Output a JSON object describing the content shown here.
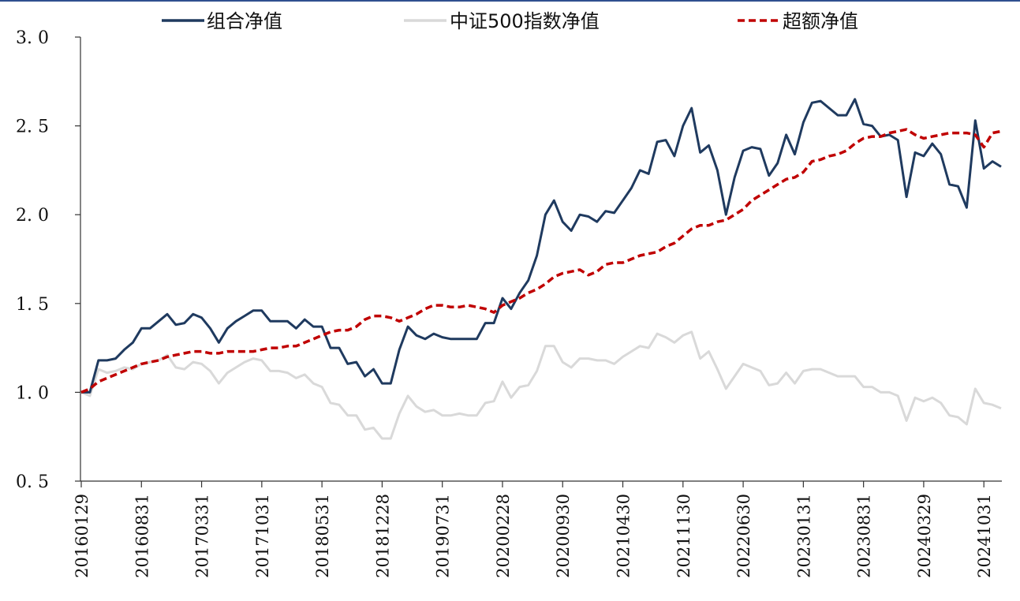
{
  "chart_data": {
    "type": "line",
    "title": "",
    "xlabel": "",
    "ylabel": "",
    "ylim": [
      0.5,
      3.0
    ],
    "yticks": [
      "3. 0",
      "2. 5",
      "2. 0",
      "1. 5",
      "1. 0",
      "0. 5"
    ],
    "ytick_values": [
      3.0,
      2.5,
      2.0,
      1.5,
      1.0,
      0.5
    ],
    "xtick_labels": [
      "20160129",
      "20160831",
      "20170331",
      "20171031",
      "20180531",
      "20181228",
      "20190731",
      "20200228",
      "20200930",
      "20210430",
      "20211130",
      "20220630",
      "20230131",
      "20230831",
      "20240329",
      "20241031"
    ],
    "grid": false,
    "legend_position": "top",
    "series": [
      {
        "name": "组合净值",
        "color": "#1f3a5f",
        "style": "solid",
        "values": [
          1.0,
          1.0,
          1.18,
          1.18,
          1.19,
          1.24,
          1.28,
          1.36,
          1.36,
          1.4,
          1.44,
          1.38,
          1.39,
          1.44,
          1.42,
          1.36,
          1.28,
          1.36,
          1.4,
          1.43,
          1.46,
          1.46,
          1.4,
          1.4,
          1.4,
          1.36,
          1.41,
          1.37,
          1.37,
          1.25,
          1.25,
          1.16,
          1.17,
          1.09,
          1.13,
          1.05,
          1.05,
          1.24,
          1.37,
          1.32,
          1.3,
          1.33,
          1.31,
          1.3,
          1.3,
          1.3,
          1.3,
          1.39,
          1.39,
          1.53,
          1.47,
          1.56,
          1.63,
          1.77,
          2.0,
          2.08,
          1.96,
          1.91,
          2.0,
          1.99,
          1.96,
          2.02,
          2.01,
          2.08,
          2.15,
          2.25,
          2.23,
          2.41,
          2.42,
          2.33,
          2.5,
          2.6,
          2.35,
          2.39,
          2.25,
          2.0,
          2.21,
          2.36,
          2.38,
          2.37,
          2.22,
          2.29,
          2.45,
          2.34,
          2.52,
          2.63,
          2.64,
          2.6,
          2.56,
          2.56,
          2.65,
          2.51,
          2.5,
          2.44,
          2.45,
          2.42,
          2.1,
          2.35,
          2.33,
          2.4,
          2.34,
          2.17,
          2.16,
          2.04,
          2.53,
          2.26,
          2.3,
          2.27
        ]
      },
      {
        "name": "中证500指数净值",
        "color": "#d9d9d9",
        "style": "solid",
        "values": [
          1.0,
          0.98,
          1.13,
          1.11,
          1.12,
          1.14,
          1.13,
          1.16,
          1.17,
          1.18,
          1.21,
          1.14,
          1.13,
          1.17,
          1.16,
          1.12,
          1.05,
          1.11,
          1.14,
          1.17,
          1.19,
          1.18,
          1.12,
          1.12,
          1.11,
          1.08,
          1.1,
          1.05,
          1.03,
          0.94,
          0.93,
          0.87,
          0.87,
          0.79,
          0.8,
          0.74,
          0.74,
          0.88,
          0.98,
          0.92,
          0.89,
          0.9,
          0.87,
          0.87,
          0.88,
          0.87,
          0.87,
          0.94,
          0.95,
          1.06,
          0.97,
          1.03,
          1.04,
          1.12,
          1.26,
          1.26,
          1.17,
          1.14,
          1.19,
          1.19,
          1.18,
          1.18,
          1.16,
          1.2,
          1.23,
          1.26,
          1.25,
          1.33,
          1.31,
          1.28,
          1.32,
          1.34,
          1.19,
          1.23,
          1.13,
          1.02,
          1.09,
          1.16,
          1.14,
          1.12,
          1.04,
          1.05,
          1.11,
          1.05,
          1.12,
          1.13,
          1.13,
          1.11,
          1.09,
          1.09,
          1.09,
          1.03,
          1.03,
          1.0,
          1.0,
          0.98,
          0.84,
          0.97,
          0.95,
          0.97,
          0.94,
          0.87,
          0.86,
          0.82,
          1.02,
          0.94,
          0.93,
          0.91
        ]
      },
      {
        "name": "超额净值",
        "color": "#c00000",
        "style": "dashed",
        "values": [
          1.0,
          1.02,
          1.06,
          1.08,
          1.1,
          1.12,
          1.14,
          1.16,
          1.17,
          1.18,
          1.2,
          1.21,
          1.22,
          1.23,
          1.23,
          1.22,
          1.22,
          1.23,
          1.23,
          1.23,
          1.23,
          1.24,
          1.25,
          1.25,
          1.26,
          1.26,
          1.28,
          1.3,
          1.32,
          1.34,
          1.35,
          1.35,
          1.37,
          1.41,
          1.43,
          1.43,
          1.42,
          1.4,
          1.42,
          1.44,
          1.47,
          1.49,
          1.49,
          1.48,
          1.48,
          1.49,
          1.48,
          1.47,
          1.45,
          1.49,
          1.51,
          1.53,
          1.56,
          1.58,
          1.61,
          1.65,
          1.67,
          1.68,
          1.69,
          1.66,
          1.68,
          1.72,
          1.73,
          1.73,
          1.75,
          1.77,
          1.78,
          1.79,
          1.82,
          1.84,
          1.88,
          1.92,
          1.94,
          1.94,
          1.96,
          1.97,
          2.0,
          2.03,
          2.08,
          2.11,
          2.14,
          2.17,
          2.2,
          2.21,
          2.24,
          2.3,
          2.31,
          2.33,
          2.34,
          2.36,
          2.4,
          2.43,
          2.44,
          2.44,
          2.46,
          2.47,
          2.48,
          2.45,
          2.43,
          2.44,
          2.45,
          2.46,
          2.46,
          2.46,
          2.45,
          2.38,
          2.46,
          2.47
        ]
      }
    ]
  }
}
